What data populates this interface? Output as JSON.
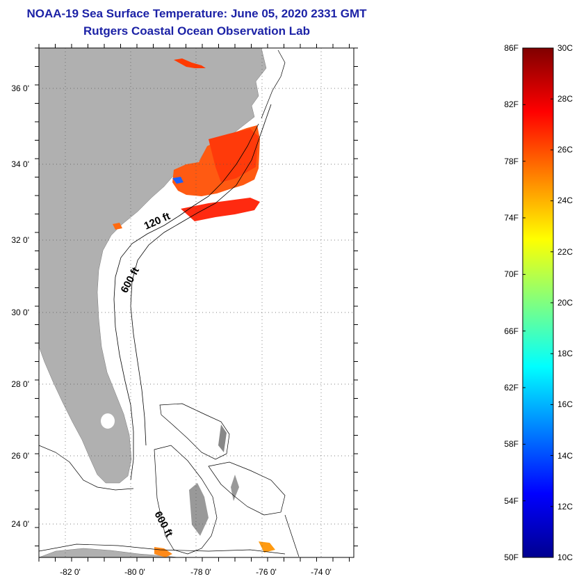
{
  "header": {
    "title": "NOAA-19 Sea Surface Temperature:  June 05, 2020 2331 GMT",
    "subtitle": "Rutgers Coastal Ocean Observation Lab"
  },
  "map": {
    "lon_range": [
      -83,
      -73
    ],
    "lat_range": [
      23,
      37
    ],
    "lon_ticks": [
      {
        "value": -82,
        "label": "-82 0'"
      },
      {
        "value": -80,
        "label": "-80 0'"
      },
      {
        "value": -78,
        "label": "-78 0'"
      },
      {
        "value": -76,
        "label": "-76 0'"
      },
      {
        "value": -74,
        "label": "-74 0'"
      }
    ],
    "lat_ticks": [
      {
        "value": 36,
        "label": "36 0'"
      },
      {
        "value": 34,
        "label": "34 0'"
      },
      {
        "value": 32,
        "label": "32 0'"
      },
      {
        "value": 30,
        "label": "30 0'"
      },
      {
        "value": 28,
        "label": "28 0'"
      },
      {
        "value": 26,
        "label": "26 0'"
      },
      {
        "value": 24,
        "label": "24 0'"
      }
    ],
    "grid": "dotted",
    "land_color": "#b0b0b0",
    "isobath_labels": [
      "120 ft",
      "600 ft",
      "600 ft"
    ]
  },
  "colorbar": {
    "fahrenheit_labels": [
      "86F",
      "82F",
      "78F",
      "74F",
      "70F",
      "66F",
      "62F",
      "58F",
      "54F",
      "50F"
    ],
    "celsius_labels": [
      "30C",
      "28C",
      "26C",
      "24C",
      "22C",
      "20C",
      "18C",
      "16C",
      "14C",
      "12C",
      "10C"
    ],
    "range_c": [
      10,
      30
    ],
    "colors": [
      "#00008f",
      "#0000ff",
      "#0080ff",
      "#00ffff",
      "#80ff80",
      "#ffff00",
      "#ff8000",
      "#ff0000",
      "#800000"
    ]
  }
}
